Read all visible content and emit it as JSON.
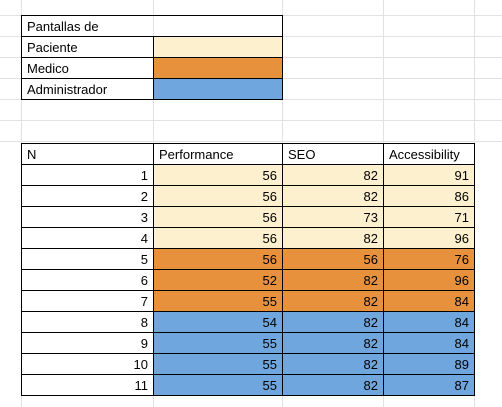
{
  "colors": {
    "paciente": "#fdf0cf",
    "medico": "#e8913c",
    "administrador": "#6fa6de"
  },
  "legend": {
    "title": "Pantallas de",
    "items": [
      {
        "label": "Paciente",
        "color_key": "paciente"
      },
      {
        "label": "Medico",
        "color_key": "medico"
      },
      {
        "label": "Administrador",
        "color_key": "administrador"
      }
    ]
  },
  "table": {
    "headers": [
      "N",
      "Performance",
      "SEO",
      "Accessibility"
    ],
    "rows": [
      {
        "n": "1",
        "performance": "56",
        "seo": "82",
        "accessibility": "91",
        "group": "paciente"
      },
      {
        "n": "2",
        "performance": "56",
        "seo": "82",
        "accessibility": "86",
        "group": "paciente"
      },
      {
        "n": "3",
        "performance": "56",
        "seo": "73",
        "accessibility": "71",
        "group": "paciente"
      },
      {
        "n": "4",
        "performance": "56",
        "seo": "82",
        "accessibility": "96",
        "group": "paciente"
      },
      {
        "n": "5",
        "performance": "56",
        "seo": "56",
        "accessibility": "76",
        "group": "medico"
      },
      {
        "n": "6",
        "performance": "52",
        "seo": "82",
        "accessibility": "96",
        "group": "medico"
      },
      {
        "n": "7",
        "performance": "55",
        "seo": "82",
        "accessibility": "84",
        "group": "medico"
      },
      {
        "n": "8",
        "performance": "54",
        "seo": "82",
        "accessibility": "84",
        "group": "administrador"
      },
      {
        "n": "9",
        "performance": "55",
        "seo": "82",
        "accessibility": "84",
        "group": "administrador"
      },
      {
        "n": "10",
        "performance": "55",
        "seo": "82",
        "accessibility": "89",
        "group": "administrador"
      },
      {
        "n": "11",
        "performance": "55",
        "seo": "82",
        "accessibility": "87",
        "group": "administrador"
      }
    ]
  }
}
